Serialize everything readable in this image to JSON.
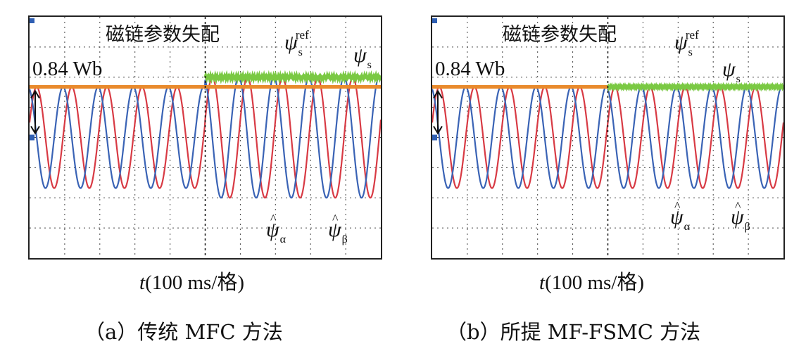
{
  "chart_data": [
    {
      "type": "line",
      "id": "a",
      "caption": "（a）传统 MFC 方法",
      "title": "磁链参数失配",
      "level_label": "0.84 Wb",
      "xlabel_italic": "t",
      "xlabel_rest": "(100 ms/格)",
      "x_divisions": 10,
      "y_divisions": 8,
      "mismatch_division": 5,
      "psi_ref_before": 0.84,
      "psi_ref_after": 0.84,
      "psi_s_before": 0.84,
      "psi_s_after": 1.0,
      "amplitude_before": 0.84,
      "amplitude_after": 1.0,
      "period_divisions": 1.0,
      "ylim": [
        -2.0,
        2.0
      ],
      "labels": {
        "psi_ref": "ψ",
        "psi_ref_sub": "s",
        "psi_ref_sup": "ref",
        "psi_s": "ψ",
        "psi_s_sub": "s",
        "psi_alpha": "ψ",
        "alpha_sub": "α",
        "psi_beta": "ψ",
        "beta_sub": "β"
      },
      "series": [
        {
          "name": "ψs_ref",
          "color": "#e98a2c"
        },
        {
          "name": "ψs",
          "color": "#7ac943"
        },
        {
          "name": "ψα_hat",
          "color": "#3a63b5"
        },
        {
          "name": "ψβ_hat",
          "color": "#d83a44"
        }
      ]
    },
    {
      "type": "line",
      "id": "b",
      "caption": "（b）所提 MF-FSMC 方法",
      "title": "磁链参数失配",
      "level_label": "0.84 Wb",
      "xlabel_italic": "t",
      "xlabel_rest": "(100 ms/格)",
      "x_divisions": 10,
      "y_divisions": 8,
      "mismatch_division": 5,
      "psi_ref_before": 0.84,
      "psi_ref_after": 0.84,
      "psi_s_before": 0.84,
      "psi_s_after": 0.84,
      "amplitude_before": 0.84,
      "amplitude_after": 0.84,
      "period_divisions": 1.0,
      "ylim": [
        -2.0,
        2.0
      ],
      "labels": {
        "psi_ref": "ψ",
        "psi_ref_sub": "s",
        "psi_ref_sup": "ref",
        "psi_s": "ψ",
        "psi_s_sub": "s",
        "psi_alpha": "ψ",
        "alpha_sub": "α",
        "psi_beta": "ψ",
        "beta_sub": "β"
      },
      "series": [
        {
          "name": "ψs_ref",
          "color": "#e98a2c"
        },
        {
          "name": "ψs",
          "color": "#7ac943"
        },
        {
          "name": "ψα_hat",
          "color": "#3a63b5"
        },
        {
          "name": "ψβ_hat",
          "color": "#d83a44"
        }
      ]
    }
  ]
}
